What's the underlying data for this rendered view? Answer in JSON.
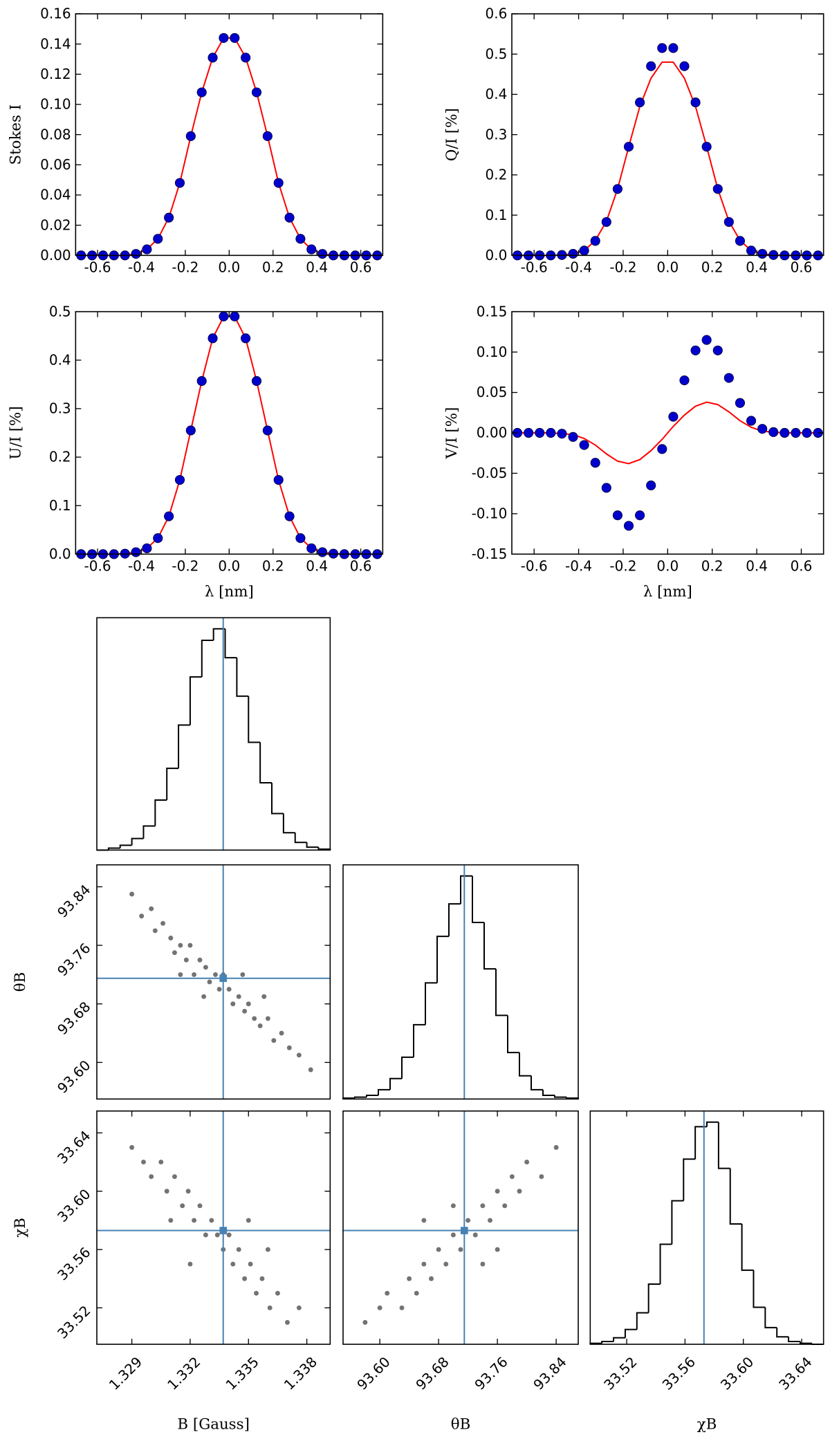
{
  "chart_data": [
    {
      "type": "line",
      "ylabel": "Stokes I",
      "x": [
        -0.675,
        -0.625,
        -0.575,
        -0.525,
        -0.475,
        -0.425,
        -0.375,
        -0.325,
        -0.275,
        -0.225,
        -0.175,
        -0.125,
        -0.075,
        -0.025,
        0.025,
        0.075,
        0.125,
        0.175,
        0.225,
        0.275,
        0.325,
        0.375,
        0.425,
        0.475,
        0.525,
        0.575,
        0.625,
        0.675
      ],
      "series": [
        {
          "mode": "markers",
          "color": "#0000cc",
          "values": [
            0,
            0,
            0,
            0,
            0,
            0.001,
            0.004,
            0.011,
            0.025,
            0.048,
            0.079,
            0.108,
            0.131,
            0.144,
            0.144,
            0.131,
            0.108,
            0.079,
            0.048,
            0.025,
            0.011,
            0.004,
            0.001,
            0,
            0,
            0,
            0,
            0
          ]
        },
        {
          "mode": "lines",
          "color": "#ff0000",
          "values": [
            0,
            0,
            0,
            0,
            0,
            0.001,
            0.004,
            0.011,
            0.025,
            0.048,
            0.079,
            0.108,
            0.131,
            0.144,
            0.144,
            0.131,
            0.108,
            0.079,
            0.048,
            0.025,
            0.011,
            0.004,
            0.001,
            0,
            0,
            0,
            0,
            0
          ]
        }
      ],
      "xlim": [
        -0.7,
        0.7
      ],
      "ylim": [
        0,
        0.16
      ],
      "xticks": [
        -0.6,
        -0.4,
        -0.2,
        {
          "value": 0,
          "label": "0.0"
        },
        0.2,
        0.4,
        0.6
      ],
      "yticks": [
        {
          "value": 0,
          "label": "0.00"
        },
        0.02,
        0.04,
        0.06,
        0.08,
        {
          "value": 0.1,
          "label": "0.10"
        },
        0.12,
        0.14,
        0.16
      ]
    },
    {
      "type": "line",
      "ylabel": "Q/I [%]",
      "x": [
        -0.675,
        -0.625,
        -0.575,
        -0.525,
        -0.475,
        -0.425,
        -0.375,
        -0.325,
        -0.275,
        -0.225,
        -0.175,
        -0.125,
        -0.075,
        -0.025,
        0.025,
        0.075,
        0.125,
        0.175,
        0.225,
        0.275,
        0.325,
        0.375,
        0.425,
        0.475,
        0.525,
        0.575,
        0.625,
        0.675
      ],
      "series": [
        {
          "mode": "markers",
          "color": "#0000cc",
          "values": [
            0,
            0,
            0,
            0,
            0.001,
            0.004,
            0.012,
            0.036,
            0.083,
            0.165,
            0.27,
            0.38,
            0.47,
            0.515,
            0.515,
            0.47,
            0.38,
            0.27,
            0.165,
            0.083,
            0.036,
            0.012,
            0.004,
            0.001,
            0,
            0,
            0,
            0
          ]
        },
        {
          "mode": "lines",
          "color": "#ff0000",
          "values": [
            0,
            0,
            0,
            0,
            0.001,
            0.004,
            0.012,
            0.037,
            0.085,
            0.165,
            0.27,
            0.37,
            0.44,
            0.48,
            0.48,
            0.44,
            0.37,
            0.27,
            0.165,
            0.085,
            0.037,
            0.012,
            0.004,
            0.001,
            0,
            0,
            0,
            0
          ]
        }
      ],
      "xlim": [
        -0.7,
        0.7
      ],
      "ylim": [
        0,
        0.6
      ],
      "xticks": [
        -0.6,
        -0.4,
        -0.2,
        {
          "value": 0,
          "label": "0.0"
        },
        0.2,
        0.4,
        0.6
      ],
      "yticks": [
        {
          "value": 0,
          "label": "0.0"
        },
        0.1,
        0.2,
        0.3,
        0.4,
        0.5,
        0.6
      ]
    },
    {
      "type": "line",
      "ylabel": "U/I [%]",
      "xlabel": "λ [nm]",
      "x": [
        -0.675,
        -0.625,
        -0.575,
        -0.525,
        -0.475,
        -0.425,
        -0.375,
        -0.325,
        -0.275,
        -0.225,
        -0.175,
        -0.125,
        -0.075,
        -0.025,
        0.025,
        0.075,
        0.125,
        0.175,
        0.225,
        0.275,
        0.325,
        0.375,
        0.425,
        0.475,
        0.525,
        0.575,
        0.625,
        0.675
      ],
      "series": [
        {
          "mode": "markers",
          "color": "#0000cc",
          "values": [
            0,
            0,
            0,
            0,
            0.001,
            0.004,
            0.012,
            0.033,
            0.078,
            0.153,
            0.255,
            0.357,
            0.445,
            0.49,
            0.49,
            0.445,
            0.357,
            0.255,
            0.153,
            0.078,
            0.033,
            0.012,
            0.004,
            0.001,
            0,
            0,
            0,
            0
          ]
        },
        {
          "mode": "lines",
          "color": "#ff0000",
          "values": [
            0,
            0,
            0,
            0,
            0.001,
            0.004,
            0.012,
            0.033,
            0.078,
            0.153,
            0.255,
            0.357,
            0.445,
            0.49,
            0.49,
            0.445,
            0.357,
            0.255,
            0.153,
            0.078,
            0.033,
            0.012,
            0.004,
            0.001,
            0,
            0,
            0,
            0
          ]
        }
      ],
      "xlim": [
        -0.7,
        0.7
      ],
      "ylim": [
        0,
        0.5
      ],
      "xticks": [
        -0.6,
        -0.4,
        -0.2,
        {
          "value": 0,
          "label": "0.0"
        },
        0.2,
        0.4,
        0.6
      ],
      "yticks": [
        {
          "value": 0,
          "label": "0.0"
        },
        0.1,
        0.2,
        0.3,
        0.4,
        0.5
      ]
    },
    {
      "type": "line",
      "ylabel": "V/I [%]",
      "xlabel": "λ [nm]",
      "x": [
        -0.675,
        -0.625,
        -0.575,
        -0.525,
        -0.475,
        -0.425,
        -0.375,
        -0.325,
        -0.275,
        -0.225,
        -0.175,
        -0.125,
        -0.075,
        -0.025,
        0.025,
        0.075,
        0.125,
        0.175,
        0.225,
        0.275,
        0.325,
        0.375,
        0.425,
        0.475,
        0.525,
        0.575,
        0.625,
        0.675
      ],
      "series": [
        {
          "mode": "markers",
          "color": "#0000cc",
          "values": [
            0,
            0,
            0,
            0,
            -0.001,
            -0.005,
            -0.015,
            -0.037,
            -0.068,
            -0.102,
            -0.115,
            -0.102,
            -0.065,
            -0.02,
            0.02,
            0.065,
            0.102,
            0.115,
            0.102,
            0.068,
            0.037,
            0.015,
            0.005,
            0.001,
            0,
            0,
            0,
            0
          ]
        },
        {
          "mode": "lines",
          "color": "#ff0000",
          "values": [
            0,
            0,
            0,
            0,
            -0.001,
            -0.002,
            -0.007,
            -0.015,
            -0.026,
            -0.035,
            -0.038,
            -0.033,
            -0.022,
            -0.008,
            0.008,
            0.022,
            0.033,
            0.038,
            0.035,
            0.026,
            0.015,
            0.007,
            0.002,
            0.001,
            0,
            0,
            0,
            0
          ]
        }
      ],
      "xlim": [
        -0.7,
        0.7
      ],
      "ylim": [
        -0.15,
        0.15
      ],
      "xticks": [
        -0.6,
        -0.4,
        -0.2,
        {
          "value": 0,
          "label": "0.0"
        },
        0.2,
        0.4,
        0.6
      ],
      "yticks": [
        -0.15,
        {
          "value": -0.1,
          "label": "-0.10"
        },
        -0.05,
        {
          "value": 0,
          "label": "0.00"
        },
        0.05,
        {
          "value": 0.1,
          "label": "0.10"
        },
        0.15
      ]
    },
    {
      "type": "histogram",
      "color": "#000000",
      "truth_color": "#4682b4",
      "truth": 1.3337,
      "bins": [
        1.3272,
        1.3278,
        1.3284,
        1.329,
        1.3296,
        1.3302,
        1.3308,
        1.3314,
        1.332,
        1.3326,
        1.3332,
        1.3338,
        1.3344,
        1.335,
        1.3356,
        1.3362,
        1.3368,
        1.3374,
        1.338,
        1.3386,
        1.3392
      ],
      "counts": [
        0,
        2,
        5,
        12,
        25,
        52,
        85,
        130,
        180,
        218,
        230,
        200,
        160,
        112,
        70,
        38,
        18,
        8,
        3,
        1
      ],
      "xlim": [
        1.3272,
        1.3392
      ]
    },
    {
      "type": "scatter",
      "color": "#000000",
      "truth_color": "#4682b4",
      "truth_x": 1.3337,
      "truth_y": 93.715,
      "ylabel": "θB",
      "x": [
        1.329,
        1.3295,
        1.33,
        1.3302,
        1.3306,
        1.331,
        1.3312,
        1.3315,
        1.3318,
        1.332,
        1.3322,
        1.3325,
        1.3328,
        1.333,
        1.3333,
        1.3335,
        1.3337,
        1.334,
        1.3342,
        1.3345,
        1.3348,
        1.335,
        1.3353,
        1.3356,
        1.336,
        1.3363,
        1.3367,
        1.3371,
        1.3376,
        1.3382,
        1.3327,
        1.3347,
        1.3315,
        1.3358
      ],
      "y": [
        93.83,
        93.8,
        93.81,
        93.78,
        93.79,
        93.77,
        93.75,
        93.76,
        93.74,
        93.76,
        93.72,
        93.74,
        93.73,
        93.71,
        93.72,
        93.7,
        93.72,
        93.7,
        93.68,
        93.69,
        93.67,
        93.68,
        93.66,
        93.65,
        93.66,
        93.63,
        93.64,
        93.62,
        93.61,
        93.59,
        93.69,
        93.72,
        93.72,
        93.69
      ],
      "xlim": [
        1.3272,
        1.3392
      ],
      "ylim": [
        93.55,
        93.87
      ],
      "yticks": [
        {
          "value": 93.6,
          "label": "93.60"
        },
        93.68,
        93.76,
        93.84
      ]
    },
    {
      "type": "histogram",
      "color": "#000000",
      "truth_color": "#4682b4",
      "truth": 93.715,
      "bins": [
        93.55,
        93.566,
        93.582,
        93.598,
        93.614,
        93.63,
        93.646,
        93.662,
        93.678,
        93.694,
        93.71,
        93.726,
        93.742,
        93.758,
        93.774,
        93.79,
        93.806,
        93.822,
        93.838,
        93.854,
        93.87
      ],
      "counts": [
        1,
        2,
        4,
        10,
        22,
        45,
        80,
        125,
        175,
        210,
        240,
        190,
        140,
        90,
        50,
        25,
        10,
        4,
        2,
        1
      ],
      "xlim": [
        93.55,
        93.87
      ]
    },
    {
      "type": "scatter",
      "color": "#000000",
      "truth_color": "#4682b4",
      "truth_x": 1.3337,
      "truth_y": 33.573,
      "xlabel": "B [Gauss]",
      "ylabel": "χB",
      "x": [
        1.329,
        1.3296,
        1.33,
        1.3305,
        1.3308,
        1.3312,
        1.3316,
        1.3319,
        1.3322,
        1.3325,
        1.3328,
        1.3331,
        1.3334,
        1.3337,
        1.334,
        1.3342,
        1.3345,
        1.3348,
        1.3351,
        1.3354,
        1.3357,
        1.3361,
        1.3365,
        1.337,
        1.3376,
        1.332,
        1.335,
        1.331,
        1.336
      ],
      "y": [
        33.63,
        33.62,
        33.61,
        33.62,
        33.6,
        33.61,
        33.59,
        33.6,
        33.58,
        33.59,
        33.57,
        33.58,
        33.57,
        33.56,
        33.57,
        33.55,
        33.56,
        33.54,
        33.55,
        33.53,
        33.54,
        33.52,
        33.53,
        33.51,
        33.52,
        33.55,
        33.58,
        33.58,
        33.56
      ],
      "xlim": [
        1.3272,
        1.3392
      ],
      "ylim": [
        33.495,
        33.655
      ],
      "xticks": [
        1.329,
        1.332,
        1.335,
        1.338
      ],
      "yticks": [
        33.52,
        33.56,
        {
          "value": 33.6,
          "label": "33.60"
        },
        33.64
      ]
    },
    {
      "type": "scatter",
      "color": "#000000",
      "truth_color": "#4682b4",
      "truth_x": 93.715,
      "truth_y": 33.573,
      "xlabel": "θB",
      "x": [
        93.58,
        93.6,
        93.61,
        93.63,
        93.64,
        93.65,
        93.66,
        93.67,
        93.68,
        93.69,
        93.7,
        93.71,
        93.72,
        93.73,
        93.74,
        93.75,
        93.76,
        93.77,
        93.78,
        93.79,
        93.8,
        93.82,
        93.84,
        93.66,
        93.74,
        93.7,
        93.76
      ],
      "y": [
        33.51,
        33.52,
        33.53,
        33.52,
        33.54,
        33.53,
        33.55,
        33.54,
        33.56,
        33.55,
        33.57,
        33.56,
        33.58,
        33.57,
        33.59,
        33.58,
        33.6,
        33.59,
        33.61,
        33.6,
        33.62,
        33.61,
        33.63,
        33.58,
        33.55,
        33.59,
        33.56
      ],
      "xlim": [
        93.55,
        93.87
      ],
      "ylim": [
        33.495,
        33.655
      ],
      "xticks": [
        {
          "value": 93.6,
          "label": "93.60"
        },
        93.68,
        93.76,
        93.84
      ]
    },
    {
      "type": "histogram",
      "color": "#000000",
      "truth_color": "#4682b4",
      "truth": 33.573,
      "xlabel": "χB",
      "bins": [
        33.495,
        33.503,
        33.511,
        33.519,
        33.527,
        33.535,
        33.543,
        33.551,
        33.559,
        33.567,
        33.575,
        33.583,
        33.591,
        33.599,
        33.607,
        33.615,
        33.623,
        33.631,
        33.639,
        33.647,
        33.655
      ],
      "counts": [
        1,
        3,
        7,
        16,
        34,
        65,
        108,
        155,
        200,
        235,
        240,
        190,
        130,
        80,
        40,
        18,
        8,
        3,
        1,
        0
      ],
      "xlim": [
        33.495,
        33.655
      ],
      "xticks": [
        33.52,
        33.56,
        {
          "value": 33.6,
          "label": "33.60"
        },
        33.64
      ]
    }
  ]
}
